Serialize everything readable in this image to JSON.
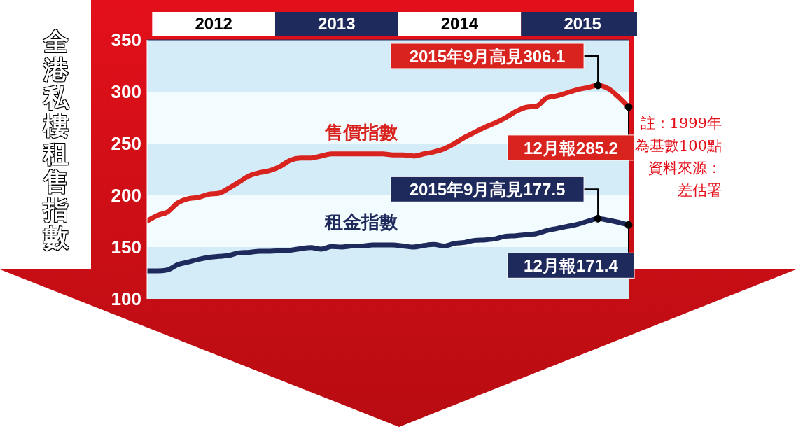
{
  "chart_data": {
    "type": "line",
    "ylabel": "全港私樓租售指數",
    "x": [
      "2012-01",
      "2012-02",
      "2012-03",
      "2012-04",
      "2012-05",
      "2012-06",
      "2012-07",
      "2012-08",
      "2012-09",
      "2012-10",
      "2012-11",
      "2012-12",
      "2013-01",
      "2013-02",
      "2013-03",
      "2013-04",
      "2013-05",
      "2013-06",
      "2013-07",
      "2013-08",
      "2013-09",
      "2013-10",
      "2013-11",
      "2013-12",
      "2014-01",
      "2014-02",
      "2014-03",
      "2014-04",
      "2014-05",
      "2014-06",
      "2014-07",
      "2014-08",
      "2014-09",
      "2014-10",
      "2014-11",
      "2014-12",
      "2015-01",
      "2015-02",
      "2015-03",
      "2015-04",
      "2015-05",
      "2015-06",
      "2015-07",
      "2015-08",
      "2015-09",
      "2015-10",
      "2015-11",
      "2015-12"
    ],
    "series": [
      {
        "name": "售價指數",
        "color": "#d8231f",
        "values": [
          175.2,
          180.6,
          184,
          192.7,
          196.7,
          198,
          201,
          202,
          207,
          213,
          219,
          222,
          224,
          228,
          234,
          236,
          236,
          238,
          240,
          240,
          240,
          240,
          240,
          240,
          239,
          239,
          238,
          240,
          242,
          245,
          250,
          256,
          261,
          266,
          270,
          275,
          281,
          285,
          286,
          294,
          296,
          299,
          302,
          304,
          306.1,
          303,
          295,
          285.2
        ]
      },
      {
        "name": "租金指數",
        "color": "#1f2a5c",
        "values": [
          127,
          127,
          128,
          133.1,
          135.5,
          138.1,
          140,
          141,
          142,
          144.5,
          145,
          146,
          146,
          146.5,
          147,
          148.5,
          149.5,
          148,
          150.5,
          150,
          151,
          151,
          152,
          152,
          152,
          151,
          150,
          151.5,
          152.5,
          151,
          153.5,
          154.5,
          156.5,
          157,
          158,
          160.5,
          161,
          162,
          163,
          166,
          168,
          170,
          172,
          175,
          177.5,
          176,
          174,
          171.4
        ]
      }
    ],
    "xlim": [
      "2012-01",
      "2015-12"
    ],
    "xticks": [
      {
        "value": "2012-07",
        "label": "2012"
      },
      {
        "value": "2013-07",
        "label": "2013"
      },
      {
        "value": "2014-07",
        "label": "2014"
      },
      {
        "value": "2015-07",
        "label": "2015"
      }
    ],
    "ylim": [
      100,
      350
    ],
    "yticks": [
      100,
      150,
      200,
      250,
      300,
      350
    ],
    "marker": "none",
    "line_style": "solid",
    "annotations": [
      {
        "text": "2015年9月高見306.1",
        "x": "2015-09",
        "y": 306.1
      },
      {
        "text": "12月報285.2",
        "x": "2015-12",
        "y": 285.2
      },
      {
        "text": "2015年9月高見177.5",
        "x": "2015-09",
        "y": 177.5
      },
      {
        "text": "12月報171.4",
        "x": "2015-12",
        "y": 171.4
      },
      "註：1999年為基數100點",
      "資料來源：差估署"
    ]
  }
}
